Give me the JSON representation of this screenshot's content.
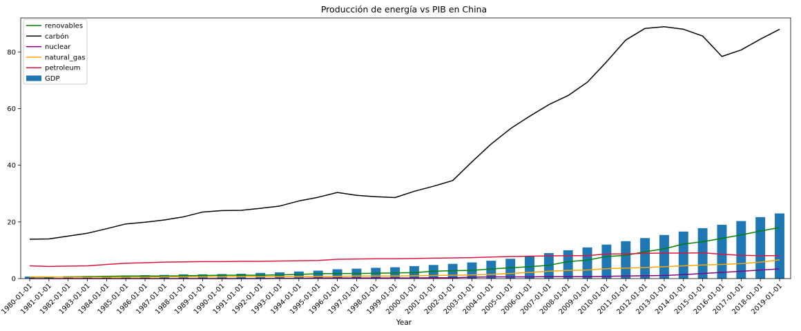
{
  "chart_data": {
    "type": "bar+line",
    "title": "Producción de energía vs PIB en China",
    "xlabel": "Year",
    "ylabel": "",
    "ylim": [
      0,
      92
    ],
    "yticks": [
      0,
      20,
      40,
      60,
      80
    ],
    "grid": false,
    "legend_position": "top-left",
    "categories": [
      "1980-01-01",
      "1981-01-01",
      "1982-01-01",
      "1983-01-01",
      "1984-01-01",
      "1985-01-01",
      "1986-01-01",
      "1987-01-01",
      "1988-01-01",
      "1989-01-01",
      "1990-01-01",
      "1991-01-01",
      "1992-01-01",
      "1993-01-01",
      "1994-01-01",
      "1995-01-01",
      "1996-01-01",
      "1997-01-01",
      "1998-01-01",
      "1999-01-01",
      "2000-01-01",
      "2001-01-01",
      "2002-01-01",
      "2003-01-01",
      "2004-01-01",
      "2005-01-01",
      "2006-01-01",
      "2007-01-01",
      "2008-01-01",
      "2009-01-01",
      "2010-01-01",
      "2011-01-01",
      "2012-01-01",
      "2013-01-01",
      "2014-01-01",
      "2015-01-01",
      "2016-01-01",
      "2017-01-01",
      "2018-01-01",
      "2019-01-01"
    ],
    "bars": {
      "name": "GDP",
      "color": "#1f77b4",
      "values": [
        0.7,
        0.7,
        0.8,
        0.9,
        1.0,
        1.1,
        1.2,
        1.3,
        1.5,
        1.5,
        1.6,
        1.7,
        2.0,
        2.2,
        2.5,
        2.8,
        3.3,
        3.5,
        3.8,
        4.0,
        4.4,
        4.8,
        5.2,
        5.7,
        6.3,
        7.0,
        7.9,
        9.0,
        10.0,
        11.0,
        12.0,
        13.2,
        14.3,
        15.4,
        16.6,
        17.8,
        19.0,
        20.3,
        21.7,
        23.0
      ]
    },
    "series": [
      {
        "name": "renovables",
        "color": "#008000",
        "values": [
          0.5,
          0.5,
          0.6,
          0.7,
          0.8,
          0.9,
          0.9,
          0.9,
          1.0,
          1.1,
          1.2,
          1.2,
          1.2,
          1.3,
          1.5,
          1.7,
          1.8,
          1.8,
          1.9,
          2.0,
          2.1,
          2.6,
          2.8,
          2.9,
          3.4,
          3.8,
          4.2,
          4.7,
          6.0,
          6.5,
          7.8,
          8.2,
          9.5,
          10.5,
          12.2,
          13.0,
          14.2,
          15.4,
          16.8,
          18.0
        ]
      },
      {
        "name": "carbón",
        "color": "#000000",
        "values": [
          13.9,
          14.0,
          15.0,
          16.0,
          17.6,
          19.3,
          19.9,
          20.7,
          21.8,
          23.5,
          24.0,
          24.1,
          24.8,
          25.6,
          27.4,
          28.7,
          30.4,
          29.4,
          28.9,
          28.6,
          30.8,
          32.6,
          34.6,
          41.2,
          47.5,
          52.9,
          57.3,
          61.4,
          64.6,
          69.3,
          76.5,
          84.2,
          88.3,
          88.9,
          88.0,
          85.6,
          78.4,
          80.7,
          84.5,
          88.0
        ]
      },
      {
        "name": "nuclear",
        "color": "#800080",
        "values": [
          0,
          0,
          0,
          0,
          0,
          0,
          0,
          0,
          0,
          0,
          0,
          0,
          0,
          0.1,
          0.1,
          0.2,
          0.2,
          0.2,
          0.2,
          0.2,
          0.2,
          0.3,
          0.3,
          0.5,
          0.6,
          0.6,
          0.6,
          0.7,
          0.7,
          0.7,
          0.8,
          0.9,
          1.0,
          1.1,
          1.4,
          1.8,
          2.2,
          2.6,
          3.0,
          3.4
        ]
      },
      {
        "name": "natural_gas",
        "color": "#ffa500",
        "values": [
          0.6,
          0.6,
          0.5,
          0.5,
          0.5,
          0.5,
          0.5,
          0.6,
          0.6,
          0.6,
          0.6,
          0.7,
          0.7,
          0.7,
          0.7,
          0.8,
          0.8,
          0.9,
          0.9,
          0.9,
          1.0,
          1.1,
          1.2,
          1.3,
          1.5,
          1.8,
          2.2,
          2.6,
          2.9,
          3.0,
          3.5,
          3.7,
          3.9,
          4.2,
          4.5,
          4.8,
          5.0,
          5.3,
          5.8,
          6.6
        ]
      },
      {
        "name": "petroleum",
        "color": "#dc143c",
        "values": [
          4.5,
          4.3,
          4.4,
          4.5,
          5.0,
          5.4,
          5.6,
          5.8,
          5.9,
          6.0,
          6.0,
          6.1,
          6.1,
          6.2,
          6.3,
          6.4,
          6.8,
          6.9,
          7.0,
          7.0,
          7.1,
          7.2,
          7.3,
          7.4,
          7.6,
          7.8,
          7.9,
          8.0,
          8.1,
          8.1,
          8.7,
          8.7,
          8.9,
          9.0,
          9.0,
          9.1,
          8.6,
          8.2,
          8.1,
          8.1
        ]
      }
    ]
  }
}
